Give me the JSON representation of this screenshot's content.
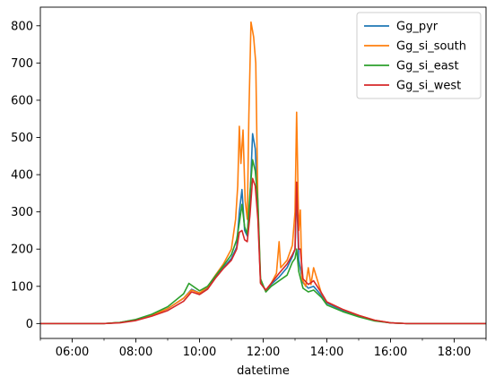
{
  "chart_data": {
    "type": "line",
    "title": "",
    "xlabel": "datetime",
    "ylabel": "",
    "x_unit": "time-of-day (hours)",
    "xlim": [
      "05:00",
      "19:00"
    ],
    "ylim": [
      -40,
      850
    ],
    "x_ticks": [
      "06:00",
      "08:00",
      "10:00",
      "12:00",
      "14:00",
      "16:00",
      "18:00"
    ],
    "y_ticks": [
      0,
      100,
      200,
      300,
      400,
      500,
      600,
      700,
      800
    ],
    "grid": false,
    "legend_position": "top-right",
    "series": [
      {
        "name": "Gg_pyr",
        "color": "#1f77b4",
        "points": [
          [
            "05:00",
            0
          ],
          [
            "07:00",
            0
          ],
          [
            "07:30",
            3
          ],
          [
            "08:00",
            10
          ],
          [
            "08:30",
            22
          ],
          [
            "09:00",
            40
          ],
          [
            "09:30",
            68
          ],
          [
            "09:45",
            92
          ],
          [
            "10:00",
            82
          ],
          [
            "10:15",
            95
          ],
          [
            "10:30",
            125
          ],
          [
            "10:45",
            150
          ],
          [
            "11:00",
            175
          ],
          [
            "11:10",
            205
          ],
          [
            "11:15",
            300
          ],
          [
            "11:20",
            360
          ],
          [
            "11:25",
            250
          ],
          [
            "11:30",
            235
          ],
          [
            "11:35",
            330
          ],
          [
            "11:40",
            510
          ],
          [
            "11:45",
            470
          ],
          [
            "11:50",
            300
          ],
          [
            "11:55",
            110
          ],
          [
            "12:05",
            88
          ],
          [
            "12:15",
            105
          ],
          [
            "12:30",
            125
          ],
          [
            "12:45",
            150
          ],
          [
            "12:55",
            180
          ],
          [
            "13:00",
            200
          ],
          [
            "13:03",
            360
          ],
          [
            "13:07",
            170
          ],
          [
            "13:15",
            110
          ],
          [
            "13:25",
            95
          ],
          [
            "13:35",
            100
          ],
          [
            "13:50",
            75
          ],
          [
            "14:00",
            55
          ],
          [
            "14:30",
            35
          ],
          [
            "15:00",
            20
          ],
          [
            "15:30",
            8
          ],
          [
            "16:00",
            2
          ],
          [
            "16:30",
            0
          ],
          [
            "19:00",
            0
          ]
        ]
      },
      {
        "name": "Gg_si_south",
        "color": "#ff7f0e",
        "points": [
          [
            "05:00",
            0
          ],
          [
            "07:00",
            0
          ],
          [
            "07:30",
            3
          ],
          [
            "08:00",
            10
          ],
          [
            "08:30",
            22
          ],
          [
            "09:00",
            40
          ],
          [
            "09:30",
            68
          ],
          [
            "09:45",
            90
          ],
          [
            "10:00",
            82
          ],
          [
            "10:15",
            98
          ],
          [
            "10:30",
            130
          ],
          [
            "10:45",
            160
          ],
          [
            "11:00",
            200
          ],
          [
            "11:08",
            280
          ],
          [
            "11:12",
            370
          ],
          [
            "11:15",
            530
          ],
          [
            "11:18",
            430
          ],
          [
            "11:22",
            520
          ],
          [
            "11:26",
            330
          ],
          [
            "11:30",
            280
          ],
          [
            "11:33",
            560
          ],
          [
            "11:37",
            810
          ],
          [
            "11:42",
            770
          ],
          [
            "11:46",
            700
          ],
          [
            "11:50",
            320
          ],
          [
            "11:55",
            110
          ],
          [
            "12:05",
            90
          ],
          [
            "12:15",
            108
          ],
          [
            "12:25",
            135
          ],
          [
            "12:30",
            220
          ],
          [
            "12:33",
            150
          ],
          [
            "12:45",
            170
          ],
          [
            "12:55",
            210
          ],
          [
            "13:00",
            300
          ],
          [
            "13:03",
            568
          ],
          [
            "13:07",
            250
          ],
          [
            "13:10",
            305
          ],
          [
            "13:13",
            120
          ],
          [
            "13:20",
            100
          ],
          [
            "13:25",
            150
          ],
          [
            "13:30",
            105
          ],
          [
            "13:35",
            150
          ],
          [
            "13:50",
            80
          ],
          [
            "14:00",
            58
          ],
          [
            "14:30",
            38
          ],
          [
            "15:00",
            22
          ],
          [
            "15:30",
            9
          ],
          [
            "16:00",
            2
          ],
          [
            "16:30",
            0
          ],
          [
            "19:00",
            0
          ]
        ]
      },
      {
        "name": "Gg_si_east",
        "color": "#2ca02c",
        "points": [
          [
            "05:00",
            0
          ],
          [
            "07:00",
            0
          ],
          [
            "07:30",
            3
          ],
          [
            "08:00",
            11
          ],
          [
            "08:30",
            25
          ],
          [
            "09:00",
            45
          ],
          [
            "09:30",
            80
          ],
          [
            "09:40",
            108
          ],
          [
            "10:00",
            88
          ],
          [
            "10:15",
            100
          ],
          [
            "10:30",
            128
          ],
          [
            "10:45",
            155
          ],
          [
            "11:00",
            185
          ],
          [
            "11:10",
            225
          ],
          [
            "11:15",
            270
          ],
          [
            "11:20",
            320
          ],
          [
            "11:25",
            260
          ],
          [
            "11:30",
            240
          ],
          [
            "11:35",
            350
          ],
          [
            "11:40",
            440
          ],
          [
            "11:45",
            410
          ],
          [
            "11:50",
            330
          ],
          [
            "11:55",
            120
          ],
          [
            "12:05",
            85
          ],
          [
            "12:15",
            100
          ],
          [
            "12:30",
            115
          ],
          [
            "12:45",
            130
          ],
          [
            "12:55",
            165
          ],
          [
            "13:00",
            175
          ],
          [
            "13:03",
            200
          ],
          [
            "13:07",
            140
          ],
          [
            "13:15",
            95
          ],
          [
            "13:25",
            85
          ],
          [
            "13:35",
            90
          ],
          [
            "13:50",
            70
          ],
          [
            "14:00",
            50
          ],
          [
            "14:30",
            32
          ],
          [
            "15:00",
            18
          ],
          [
            "15:30",
            7
          ],
          [
            "16:00",
            2
          ],
          [
            "16:30",
            0
          ],
          [
            "19:00",
            0
          ]
        ]
      },
      {
        "name": "Gg_si_west",
        "color": "#d62728",
        "points": [
          [
            "05:00",
            0
          ],
          [
            "07:00",
            0
          ],
          [
            "07:30",
            2
          ],
          [
            "08:00",
            8
          ],
          [
            "08:30",
            20
          ],
          [
            "09:00",
            35
          ],
          [
            "09:30",
            60
          ],
          [
            "09:45",
            85
          ],
          [
            "10:00",
            78
          ],
          [
            "10:15",
            92
          ],
          [
            "10:30",
            122
          ],
          [
            "10:45",
            148
          ],
          [
            "11:00",
            170
          ],
          [
            "11:10",
            200
          ],
          [
            "11:15",
            245
          ],
          [
            "11:20",
            250
          ],
          [
            "11:25",
            225
          ],
          [
            "11:30",
            220
          ],
          [
            "11:35",
            290
          ],
          [
            "11:40",
            390
          ],
          [
            "11:45",
            370
          ],
          [
            "11:50",
            280
          ],
          [
            "11:55",
            108
          ],
          [
            "12:05",
            90
          ],
          [
            "12:15",
            108
          ],
          [
            "12:30",
            135
          ],
          [
            "12:45",
            160
          ],
          [
            "12:55",
            185
          ],
          [
            "13:00",
            200
          ],
          [
            "13:03",
            380
          ],
          [
            "13:07",
            200
          ],
          [
            "13:10",
            200
          ],
          [
            "13:15",
            120
          ],
          [
            "13:25",
            105
          ],
          [
            "13:35",
            115
          ],
          [
            "13:50",
            82
          ],
          [
            "14:00",
            58
          ],
          [
            "14:30",
            38
          ],
          [
            "15:00",
            22
          ],
          [
            "15:30",
            9
          ],
          [
            "16:00",
            2
          ],
          [
            "16:30",
            0
          ],
          [
            "19:00",
            0
          ]
        ]
      }
    ]
  }
}
